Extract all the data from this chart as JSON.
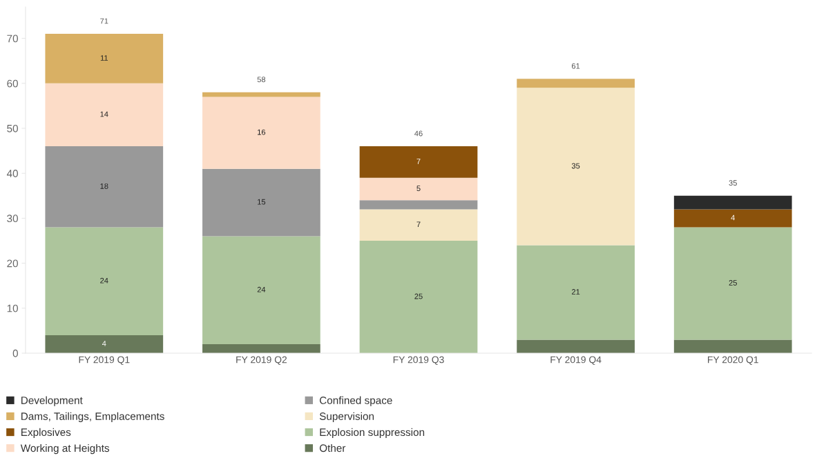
{
  "chart_data": {
    "type": "bar",
    "stacked": true,
    "categories": [
      "FY 2019 Q1",
      "FY 2019 Q2",
      "FY 2019 Q3",
      "FY 2019 Q4",
      "FY 2020 Q1"
    ],
    "series": [
      {
        "name": "Other",
        "color": "#68795a",
        "values": [
          4,
          2,
          null,
          3,
          3
        ],
        "value_labels": [
          "4",
          null,
          null,
          null,
          null
        ]
      },
      {
        "name": "Explosion suppression",
        "color": "#adc59c",
        "values": [
          24,
          24,
          25,
          21,
          25
        ],
        "value_labels": [
          "24",
          "24",
          "25",
          "21",
          "25"
        ]
      },
      {
        "name": "Supervision",
        "color": "#f5e6c3",
        "values": [
          null,
          null,
          7,
          35,
          null
        ],
        "value_labels": [
          null,
          null,
          "7",
          "35",
          null
        ]
      },
      {
        "name": "Confined space",
        "color": "#999999",
        "values": [
          18,
          15,
          2,
          null,
          null
        ],
        "value_labels": [
          "18",
          "15",
          null,
          null,
          null
        ]
      },
      {
        "name": "Working at Heights",
        "color": "#fcdcc7",
        "values": [
          14,
          16,
          5,
          null,
          null
        ],
        "value_labels": [
          "14",
          "16",
          "5",
          null,
          null
        ]
      },
      {
        "name": "Explosives",
        "color": "#8b520b",
        "values": [
          null,
          null,
          7,
          null,
          4
        ],
        "value_labels": [
          null,
          null,
          "7",
          null,
          "4"
        ]
      },
      {
        "name": "Dams, Tailings, Emplacements",
        "color": "#d9b064",
        "values": [
          11,
          1,
          null,
          2,
          null
        ],
        "value_labels": [
          "11",
          null,
          null,
          null,
          null
        ]
      },
      {
        "name": "Development",
        "color": "#2b2b2b",
        "values": [
          null,
          null,
          null,
          null,
          3
        ]
      }
    ],
    "totals": [
      "71",
      "58",
      "46",
      "61",
      "35"
    ],
    "ylim": [
      0,
      77
    ],
    "yticks": [
      0,
      10,
      20,
      30,
      40,
      50,
      60,
      70
    ],
    "legend": "bottom"
  }
}
